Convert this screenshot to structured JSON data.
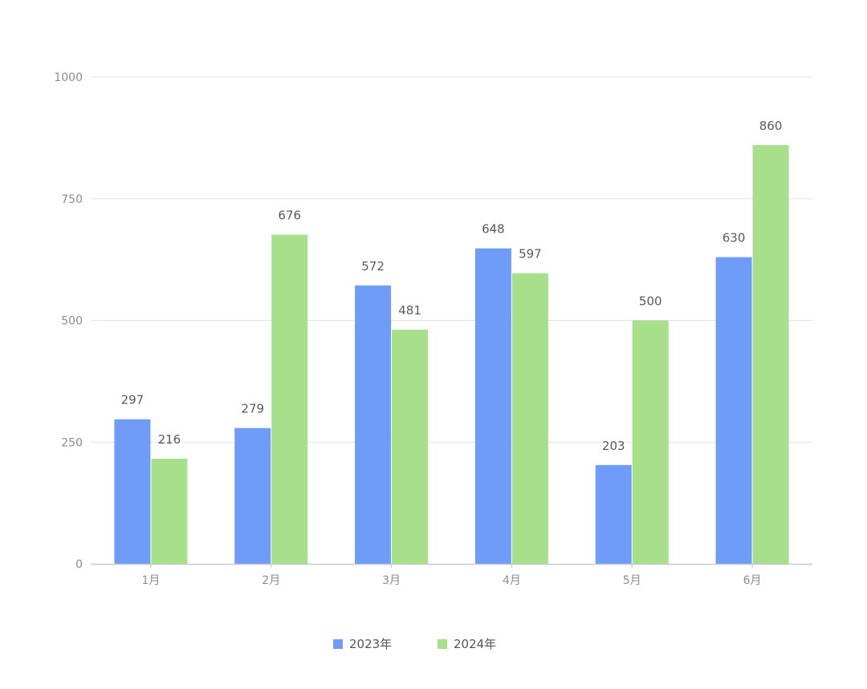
{
  "chart_data": {
    "type": "bar",
    "title": "",
    "xlabel": "",
    "ylabel": "",
    "categories": [
      "1月",
      "2月",
      "3月",
      "4月",
      "5月",
      "6月"
    ],
    "series": [
      {
        "name": "2023年",
        "color": "#6f9cf8",
        "values": [
          297,
          279,
          572,
          648,
          203,
          630
        ]
      },
      {
        "name": "2024年",
        "color": "#a7df8a",
        "values": [
          216,
          676,
          481,
          597,
          500,
          860
        ]
      }
    ],
    "ylim": [
      0,
      1000
    ],
    "yticks": [
      0,
      250,
      500,
      750,
      1000
    ],
    "grid": true,
    "legend_position": "bottom-center",
    "data_labels": true
  }
}
